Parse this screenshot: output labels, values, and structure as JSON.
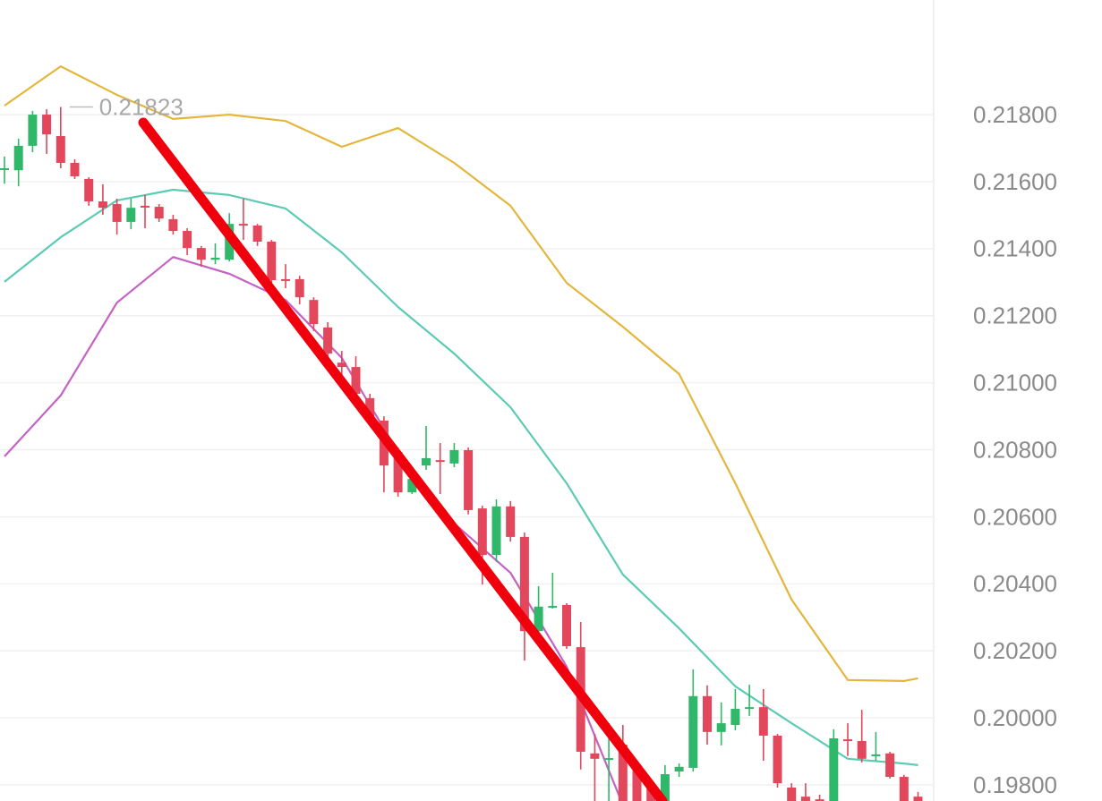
{
  "chart_data": {
    "type": "candlestick",
    "up_color": "#2fb86a",
    "down_color": "#e2475b",
    "open": [
      0.2164,
      0.21634,
      0.21707,
      0.218,
      0.21736,
      0.21656,
      0.21608,
      0.21541,
      0.21533,
      0.2148,
      0.21528,
      0.21525,
      0.21488,
      0.21453,
      0.21402,
      0.21367,
      0.21367,
      0.21474,
      0.21469,
      0.21421,
      0.21309,
      0.21309,
      0.21247,
      0.21165,
      0.2106,
      0.21047,
      0.20954,
      0.20887,
      0.20793,
      0.20673,
      0.20753,
      0.20769,
      0.20759,
      0.20799,
      0.20625,
      0.20486,
      0.20631,
      0.2054,
      0.20259,
      0.20334,
      0.20337,
      0.20211,
      0.19894,
      0.19878,
      0.1992,
      0.19859,
      0.19792,
      0.1973,
      0.1984,
      0.19851,
      0.20065,
      0.19958,
      0.19979,
      0.20032,
      0.20032,
      0.19947,
      0.19792,
      0.19765,
      0.19757,
      0.1974,
      0.19936,
      0.19931,
      0.19886,
      0.19894,
      0.19824,
      0.19765
    ],
    "high": [
      0.21675,
      0.21728,
      0.21811,
      0.21816,
      0.21823,
      0.21667,
      0.21613,
      0.21592,
      0.21549,
      0.21549,
      0.2156,
      0.21533,
      0.21501,
      0.21461,
      0.21408,
      0.21416,
      0.21506,
      0.21549,
      0.21474,
      0.21426,
      0.21354,
      0.21319,
      0.21255,
      0.21181,
      0.21095,
      0.21079,
      0.20967,
      0.209,
      0.20807,
      0.2074,
      0.20871,
      0.2082,
      0.2082,
      0.20807,
      0.20633,
      0.20652,
      0.20647,
      0.20553,
      0.20393,
      0.20433,
      0.20342,
      0.20286,
      0.19952,
      0.19984,
      0.19979,
      0.19872,
      0.19819,
      0.19859,
      0.19864,
      0.20145,
      0.20097,
      0.20046,
      0.20086,
      0.20099,
      0.20086,
      0.19952,
      0.19805,
      0.19805,
      0.19771,
      0.19966,
      0.19984,
      0.20024,
      0.19958,
      0.19899,
      0.1983,
      0.19779
    ],
    "low": [
      0.21594,
      0.21586,
      0.21688,
      0.21683,
      0.2164,
      0.21608,
      0.21528,
      0.21501,
      0.21442,
      0.21458,
      0.21461,
      0.2148,
      0.21442,
      0.21381,
      0.21346,
      0.21354,
      0.21362,
      0.21426,
      0.21408,
      0.21293,
      0.21282,
      0.21234,
      0.21154,
      0.21074,
      0.20994,
      0.20954,
      0.20874,
      0.20673,
      0.2066,
      0.20668,
      0.2074,
      0.20668,
      0.20748,
      0.20607,
      0.20398,
      0.20465,
      0.20526,
      0.20171,
      0.20246,
      0.20326,
      0.20206,
      0.19846,
      0.1974,
      0.1974,
      0.197,
      0.1969,
      0.1968,
      0.197,
      0.19824,
      0.1984,
      0.1992,
      0.19918,
      0.19963,
      0.20006,
      0.19872,
      0.19792,
      0.1971,
      0.197,
      0.1971,
      0.197,
      0.19886,
      0.19867,
      0.19872,
      0.19819,
      0.1971,
      0.197
    ],
    "close": [
      0.2164,
      0.21707,
      0.218,
      0.21741,
      0.21656,
      0.21616,
      0.21541,
      0.21522,
      0.2148,
      0.21522,
      0.21525,
      0.2149,
      0.21453,
      0.21402,
      0.21367,
      0.21373,
      0.21474,
      0.21469,
      0.21421,
      0.21306,
      0.21306,
      0.21255,
      0.21175,
      0.21087,
      0.21047,
      0.20967,
      0.20887,
      0.20753,
      0.20673,
      0.20713,
      0.20775,
      0.20764,
      0.20799,
      0.2062,
      0.20486,
      0.20631,
      0.2054,
      0.20259,
      0.20332,
      0.20334,
      0.20214,
      0.19899,
      0.19878,
      0.1988,
      0.1973,
      0.1972,
      0.1971,
      0.19832,
      0.19854,
      0.20065,
      0.19958,
      0.19984,
      0.20027,
      0.20032,
      0.19947,
      0.19805,
      0.1974,
      0.1973,
      0.19735,
      0.19939,
      0.19931,
      0.19878,
      0.19891,
      0.19824,
      0.1974,
      0.1973
    ],
    "bands": [
      {
        "color": "#e3b63c",
        "x": [
          0,
          4,
          8,
          12,
          16,
          20,
          24,
          28,
          32,
          36,
          40,
          44,
          48,
          52,
          56,
          60,
          64,
          65
        ],
        "values": [
          0.21827,
          0.21944,
          0.21859,
          0.21787,
          0.218,
          0.21781,
          0.21704,
          0.2176,
          0.21656,
          0.21528,
          0.21298,
          0.21167,
          0.21026,
          0.207,
          0.20353,
          0.20113,
          0.2011,
          0.20118
        ]
      },
      {
        "color": "#5ccbb4",
        "x": [
          0,
          4,
          8,
          12,
          16,
          20,
          24,
          28,
          32,
          36,
          40,
          44,
          48,
          52,
          56,
          60,
          64,
          65
        ],
        "values": [
          0.21301,
          0.21434,
          0.21544,
          0.21576,
          0.2156,
          0.2152,
          0.21389,
          0.21226,
          0.21087,
          0.20927,
          0.207,
          0.20428,
          0.20267,
          0.20094,
          0.19984,
          0.19878,
          0.19864,
          0.19859
        ]
      },
      {
        "color": "#c562c4",
        "x": [
          0,
          4,
          8,
          12,
          16,
          20,
          24,
          28,
          32,
          36,
          40,
          44
        ],
        "values": [
          0.2078,
          0.20962,
          0.21239,
          0.21375,
          0.21325,
          0.21247,
          0.21074,
          0.20793,
          0.2058,
          0.20433,
          0.20153,
          0.1974
        ]
      }
    ],
    "max_label": "0.21823",
    "max_index": 4,
    "ylim": [
      0.19752,
      0.22142
    ],
    "yticks": [
      {
        "value": 0.198,
        "label": "0.19800"
      },
      {
        "value": 0.2,
        "label": "0.20000"
      },
      {
        "value": 0.202,
        "label": "0.20200"
      },
      {
        "value": 0.204,
        "label": "0.20400"
      },
      {
        "value": 0.206,
        "label": "0.20600"
      },
      {
        "value": 0.208,
        "label": "0.20800"
      },
      {
        "value": 0.21,
        "label": "0.21000"
      },
      {
        "value": 0.212,
        "label": "0.21200"
      },
      {
        "value": 0.214,
        "label": "0.21400"
      },
      {
        "value": 0.216,
        "label": "0.21600"
      },
      {
        "value": 0.218,
        "label": "0.21800"
      }
    ],
    "grid": true
  }
}
